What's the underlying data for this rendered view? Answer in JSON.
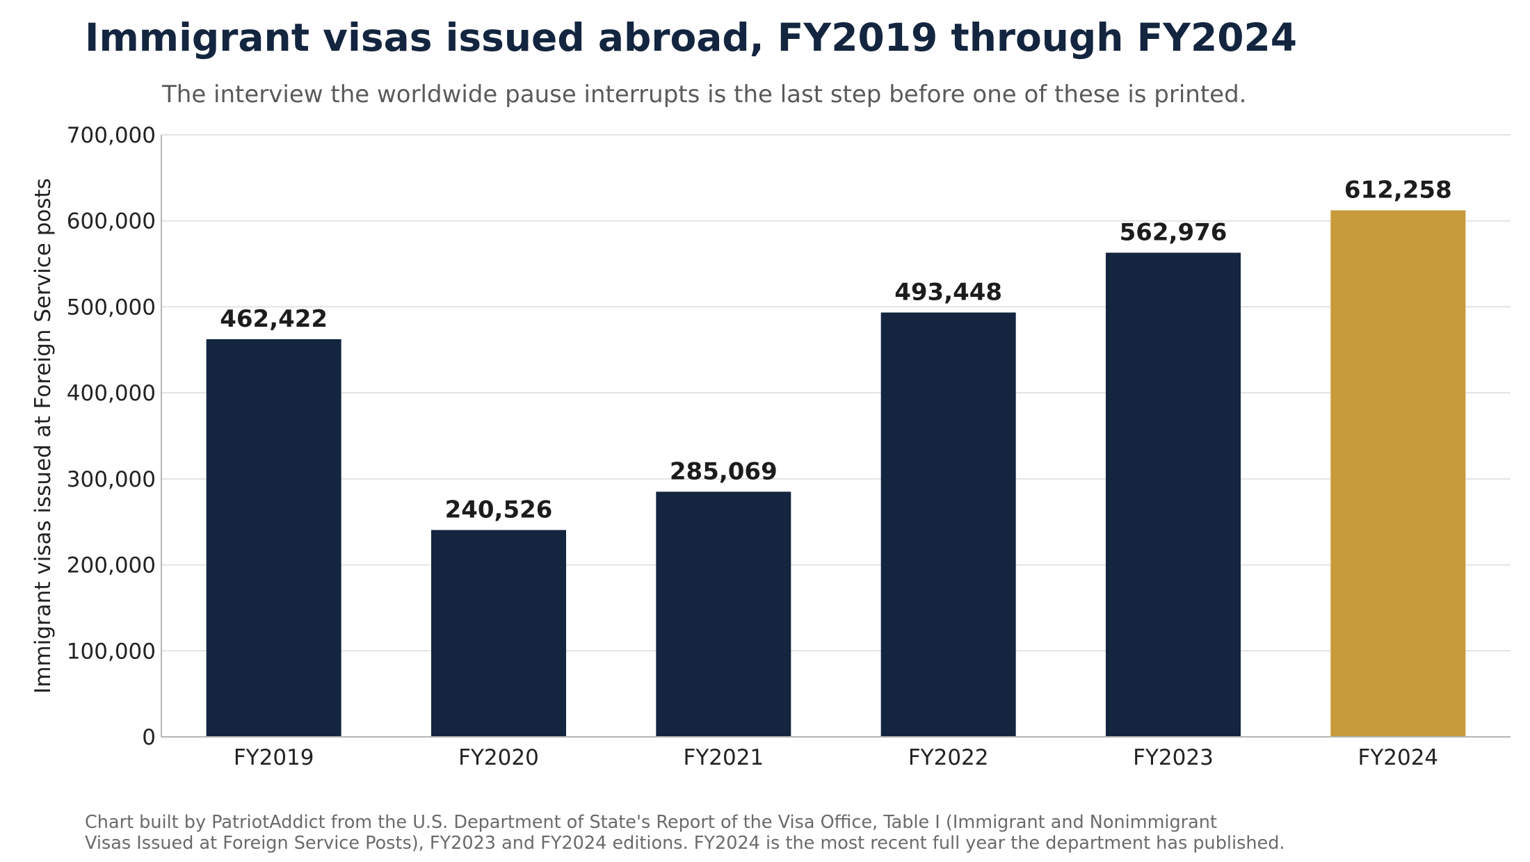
{
  "title": "Immigrant visas issued abroad, FY2019 through FY2024",
  "subtitle": "The interview the worldwide pause interrupts is the last step before one of these is printed.",
  "source_line1": "Chart built by PatriotAddict from the U.S. Department of State's Report of the Visa Office, Table I (Immigrant and Nonimmigrant",
  "source_line2": "Visas Issued at Foreign Service Posts), FY2023 and FY2024 editions. FY2024 is the most recent full year the department has published.",
  "colors": {
    "bar": "#13253f",
    "highlight": "#c79a3c",
    "grid": "#e3e3e3",
    "axis": "#b5b5b5",
    "text": "#222222",
    "label": "#1c1c1c"
  },
  "chart_data": {
    "type": "bar",
    "title": "Immigrant visas issued abroad, FY2019 through FY2024",
    "subtitle": "The interview the worldwide pause interrupts is the last step before one of these is printed.",
    "xlabel": "",
    "ylabel": "Immigrant visas issued at Foreign Service posts",
    "categories": [
      "FY2019",
      "FY2020",
      "FY2021",
      "FY2022",
      "FY2023",
      "FY2024"
    ],
    "values": [
      462422,
      240526,
      285069,
      493448,
      562976,
      612258
    ],
    "value_labels": [
      "462,422",
      "240,526",
      "285,069",
      "493,448",
      "562,976",
      "612,258"
    ],
    "highlighted_category": "FY2024",
    "ylim": [
      0,
      700000
    ],
    "yticks": [
      0,
      100000,
      200000,
      300000,
      400000,
      500000,
      600000,
      700000
    ],
    "ytick_labels": [
      "0",
      "100,000",
      "200,000",
      "300,000",
      "400,000",
      "500,000",
      "600,000",
      "700,000"
    ],
    "grid": true,
    "legend": "none"
  }
}
